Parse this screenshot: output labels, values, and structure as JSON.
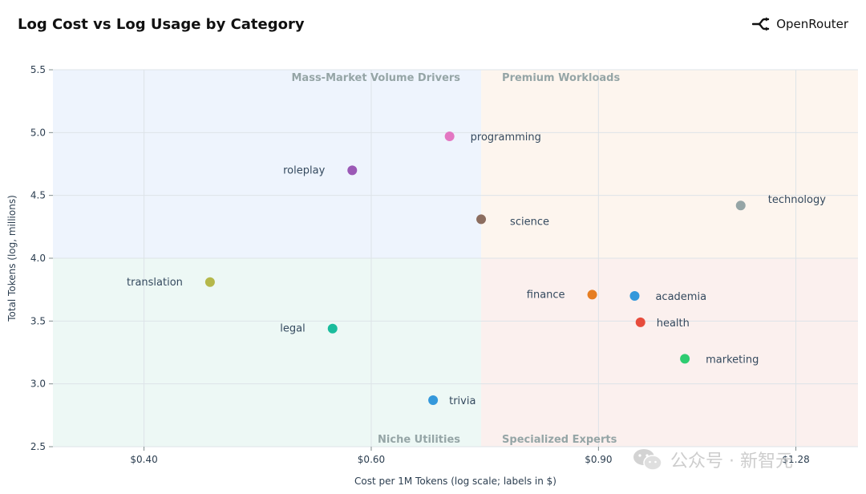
{
  "header": {
    "title": "Log Cost vs Log Usage by Category",
    "brand_name": "OpenRouter",
    "brand_icon": "openrouter-logo-icon"
  },
  "watermark": {
    "icon": "wechat-icon",
    "text": "公众号 · 新智元"
  },
  "chart_data": {
    "type": "scatter",
    "title": "Log Cost vs Log Usage by Category",
    "xlabel": "Cost per 1M Tokens (log scale; labels in $)",
    "ylabel": "Total Tokens (log, millions)",
    "x_scale": "log",
    "xlim": [
      0.34,
      1.43
    ],
    "ylim": [
      2.5,
      5.5
    ],
    "x_ticks": [
      {
        "value": 0.4,
        "label": "$0.40"
      },
      {
        "value": 0.6,
        "label": "$0.60"
      },
      {
        "value": 0.9,
        "label": "$0.90"
      },
      {
        "value": 1.28,
        "label": "$1.28"
      }
    ],
    "y_ticks": [
      {
        "value": 2.5,
        "label": "2.5"
      },
      {
        "value": 3.0,
        "label": "3.0"
      },
      {
        "value": 3.5,
        "label": "3.5"
      },
      {
        "value": 4.0,
        "label": "4.0"
      },
      {
        "value": 4.5,
        "label": "4.5"
      },
      {
        "value": 5.0,
        "label": "5.0"
      },
      {
        "value": 5.5,
        "label": "5.5"
      }
    ],
    "grid": true,
    "split": {
      "x": 0.73,
      "y": 4.0
    },
    "quadrants": [
      {
        "label": "Mass-Market Volume Drivers",
        "color": "#eef4fd"
      },
      {
        "label": "Premium Workloads",
        "color": "#fdf5ee"
      },
      {
        "label": "Niche Utilities",
        "color": "#edf8f5"
      },
      {
        "label": "Specialized Experts",
        "color": "#fbf0ee"
      }
    ],
    "points": [
      {
        "name": "programming",
        "x": 0.69,
        "y": 4.97,
        "color": "#e377c2",
        "label_side": "right"
      },
      {
        "name": "roleplay",
        "x": 0.58,
        "y": 4.7,
        "color": "#9b59b6",
        "label_side": "left"
      },
      {
        "name": "science",
        "x": 0.73,
        "y": 4.31,
        "color": "#8c6d5f",
        "label_side": "right-low"
      },
      {
        "name": "technology",
        "x": 1.16,
        "y": 4.42,
        "color": "#95a5a6",
        "label_side": "right-high"
      },
      {
        "name": "translation",
        "x": 0.45,
        "y": 3.81,
        "color": "#b5b84a",
        "label_side": "left"
      },
      {
        "name": "finance",
        "x": 0.89,
        "y": 3.71,
        "color": "#e67e22",
        "label_side": "left"
      },
      {
        "name": "academia",
        "x": 0.96,
        "y": 3.7,
        "color": "#3498db",
        "label_side": "right"
      },
      {
        "name": "legal",
        "x": 0.56,
        "y": 3.44,
        "color": "#1abc9c",
        "label_side": "left"
      },
      {
        "name": "health",
        "x": 0.97,
        "y": 3.49,
        "color": "#e74c3c",
        "label_side": "right"
      },
      {
        "name": "marketing",
        "x": 1.05,
        "y": 3.2,
        "color": "#2ecc71",
        "label_side": "right"
      },
      {
        "name": "trivia",
        "x": 0.67,
        "y": 2.87,
        "color": "#3498db",
        "label_side": "right"
      }
    ]
  }
}
